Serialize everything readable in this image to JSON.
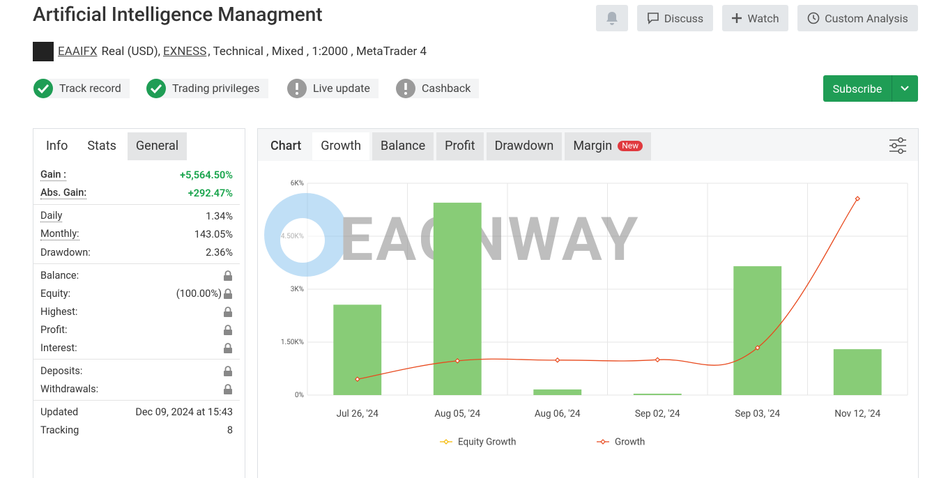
{
  "header": {
    "title": "Artificial Intelligence Managment",
    "buttons": [
      "Discuss",
      "Watch",
      "Custom Analysis"
    ],
    "account": "EAAIFX",
    "details_pre": "Real (USD),",
    "broker": "EXNESS",
    "details_post": ", Technical , Mixed , 1:2000 , MetaTrader 4",
    "subscribe": "Subscribe"
  },
  "badges": [
    {
      "label": "Track record",
      "verified": true
    },
    {
      "label": "Trading privileges",
      "verified": true
    },
    {
      "label": "Live update",
      "verified": false
    },
    {
      "label": "Cashback",
      "verified": false
    }
  ],
  "stats": {
    "tabs": [
      "Info",
      "Stats",
      "General"
    ],
    "active_tab": 1,
    "groups": [
      [
        {
          "label": "Gain :",
          "value": "+5,564.50%",
          "positive": true
        },
        {
          "label": "Abs. Gain:",
          "value": "+292.47%",
          "positive": true
        }
      ],
      [
        {
          "label": "Daily",
          "value": "1.34%"
        },
        {
          "label": "Monthly:",
          "value": "143.05%"
        },
        {
          "label": "Drawdown:",
          "value": "2.36%"
        }
      ],
      [
        {
          "label": "Balance:",
          "locked": true
        },
        {
          "label": "Equity:",
          "value": "(100.00%)",
          "locked": true
        },
        {
          "label": "Highest:",
          "locked": true
        },
        {
          "label": "Profit:",
          "locked": true
        },
        {
          "label": "Interest:",
          "locked": true
        }
      ],
      [
        {
          "label": "Deposits:",
          "locked": true
        },
        {
          "label": "Withdrawals:",
          "locked": true
        }
      ],
      [
        {
          "label": "Updated",
          "value": "Dec 09, 2024 at 15:43"
        },
        {
          "label": "Tracking",
          "value": "8"
        }
      ]
    ]
  },
  "chart_tabs": {
    "heading": "Chart",
    "tabs": [
      "Growth",
      "Balance",
      "Profit",
      "Drawdown",
      "Margin"
    ],
    "active_tab": 0,
    "new_badge": "New"
  },
  "watermark": "EAONWAY",
  "chart_data": {
    "type": "bar",
    "categories": [
      "Jul 26, '24",
      "Aug 05, '24",
      "Aug 06, '24",
      "Sep 02, '24",
      "Sep 03, '24",
      "Nov 12, '24"
    ],
    "bar_values": [
      2560,
      5450,
      160,
      40,
      3650,
      1300
    ],
    "bar_color": "#88cc77",
    "series": [
      {
        "name": "Equity Growth",
        "color": "#f5b800",
        "values": [
          null,
          null,
          null,
          null,
          null,
          null
        ]
      },
      {
        "name": "Growth",
        "color": "#e8491d",
        "values": [
          450,
          970,
          990,
          1000,
          1340,
          5564.5
        ]
      }
    ],
    "ylim": [
      0,
      6000
    ],
    "yticks": [
      {
        "value": 0,
        "label": "0%"
      },
      {
        "value": 1500,
        "label": "1.50K%"
      },
      {
        "value": 3000,
        "label": "3K%"
      },
      {
        "value": 4500,
        "label": "4.50K%"
      },
      {
        "value": 6000,
        "label": "6K%"
      }
    ],
    "grid": true
  }
}
